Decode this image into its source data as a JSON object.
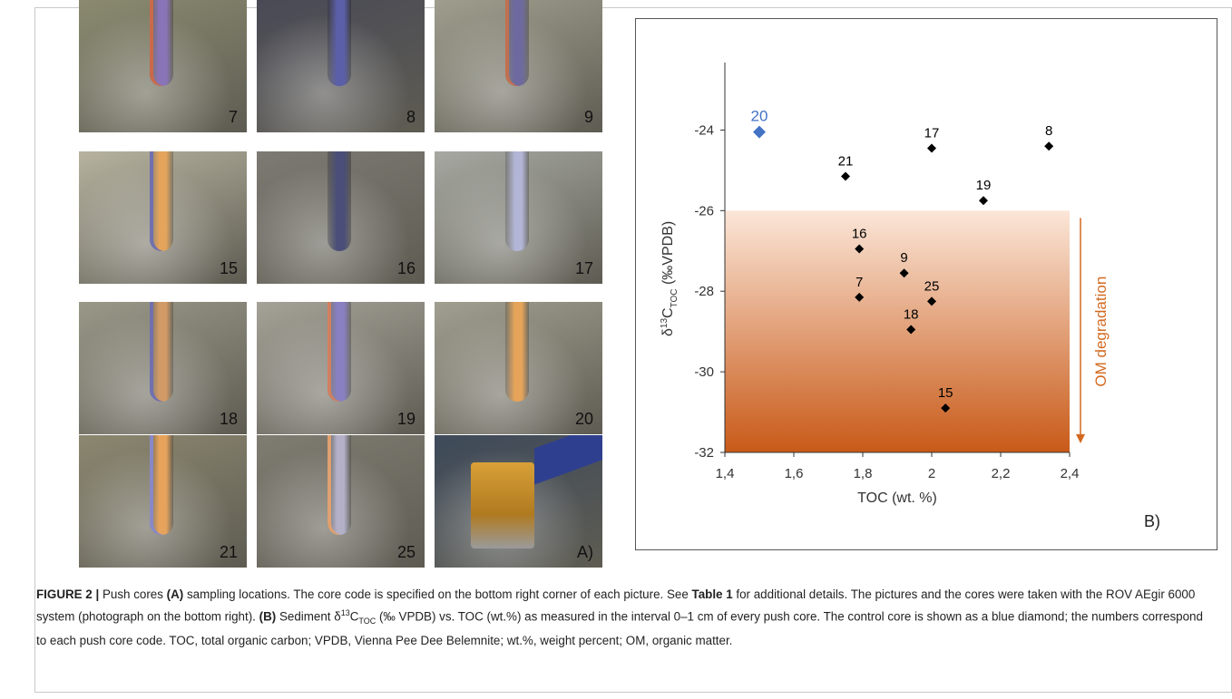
{
  "photos": [
    {
      "code": "7",
      "bg": "#8b8a70",
      "tube": "#8a74b8",
      "stripe": "#c96a4a"
    },
    {
      "code": "8",
      "bg": "#4a4a56",
      "tube": "#5b5fa8",
      "stripe": ""
    },
    {
      "code": "9",
      "bg": "#9f9e8e",
      "tube": "#6e6aa0",
      "stripe": "#c07050"
    },
    {
      "code": "15",
      "bg": "#b7b3a0",
      "tube": "#e4a45c",
      "stripe": "#7070b0"
    },
    {
      "code": "16",
      "bg": "#7c7a72",
      "tube": "#4a4e78",
      "stripe": ""
    },
    {
      "code": "17",
      "bg": "#a7a9a2",
      "tube": "#b3b5d6",
      "stripe": ""
    },
    {
      "code": "18",
      "bg": "#9a9888",
      "tube": "#d29a66",
      "stripe": "#7070b0"
    },
    {
      "code": "19",
      "bg": "#a5a298",
      "tube": "#8880c0",
      "stripe": "#d08060"
    },
    {
      "code": "20",
      "bg": "#a19f90",
      "tube": "#e6a45a",
      "stripe": ""
    },
    {
      "code": "21",
      "bg": "#8c8770",
      "tube": "#e7a35b",
      "stripe": "#8888c8"
    },
    {
      "code": "25",
      "bg": "#7f7d72",
      "tube": "#b3b0c8",
      "stripe": "#e0a070"
    },
    {
      "code": "A)",
      "bg": "#3e4a5a",
      "tube": "",
      "stripe": ""
    }
  ],
  "chart_data": {
    "type": "scatter",
    "xlabel": "TOC (wt. %)",
    "ylabel_main": "δ",
    "ylabel_sup": "13",
    "ylabel_c": "C",
    "ylabel_sub": "TOC",
    "ylabel_tail": " (‰VPDB)",
    "xlim": [
      1.4,
      2.4
    ],
    "ylim": [
      -32,
      -23
    ],
    "xticks": [
      "1,4",
      "1,6",
      "1,8",
      "2",
      "2,2",
      "2,4"
    ],
    "xtick_values": [
      1.4,
      1.6,
      1.8,
      2.0,
      2.2,
      2.4
    ],
    "yticks": [
      "-24",
      "-26",
      "-28",
      "-30",
      "-32"
    ],
    "ytick_values": [
      -24,
      -26,
      -28,
      -30,
      -32
    ],
    "shaded_region": {
      "y_from": -26,
      "y_to": -32,
      "color_top": "#fbe6d8",
      "color_bottom": "#c85a18"
    },
    "arrow_label": "OM degradation",
    "arrow_color": "#d3691f",
    "panel_label": "B)",
    "points": [
      {
        "label": "20",
        "x": 1.5,
        "y": -24.05,
        "control": true
      },
      {
        "label": "17",
        "x": 2.0,
        "y": -24.45,
        "control": false
      },
      {
        "label": "8",
        "x": 2.34,
        "y": -24.4,
        "control": false
      },
      {
        "label": "21",
        "x": 1.75,
        "y": -25.15,
        "control": false
      },
      {
        "label": "19",
        "x": 2.15,
        "y": -25.75,
        "control": false
      },
      {
        "label": "16",
        "x": 1.79,
        "y": -26.95,
        "control": false
      },
      {
        "label": "9",
        "x": 1.92,
        "y": -27.55,
        "control": false
      },
      {
        "label": "25",
        "x": 2.0,
        "y": -28.25,
        "control": false
      },
      {
        "label": "7",
        "x": 1.79,
        "y": -28.15,
        "control": false
      },
      {
        "label": "18",
        "x": 1.94,
        "y": -28.95,
        "control": false
      },
      {
        "label": "15",
        "x": 2.04,
        "y": -30.9,
        "control": false
      }
    ],
    "control_color": "#4472c4",
    "point_color": "#000000"
  },
  "caption": {
    "fig": "FIGURE 2 |",
    "t1": " Push cores ",
    "a": "(A)",
    "t2": " sampling locations. The core code is specified on the bottom right corner of each picture. See ",
    "table": "Table 1",
    "t3": " for additional details. The pictures and the cores were taken with the ROV AEgir 6000 system (photograph on the bottom right). ",
    "b": "(B)",
    "t4": " Sediment δ",
    "sup13": "13",
    "t5": "C",
    "subtoc": "TOC",
    "t6": " (‰ VPDB) vs. TOC (wt.%) as measured in the interval 0–1 cm of every push core. The control core is shown as a blue diamond; the numbers correspond to each push core code. TOC, total organic carbon; VPDB, Vienna Pee Dee Belemnite; wt.%, weight percent; OM, organic matter."
  }
}
